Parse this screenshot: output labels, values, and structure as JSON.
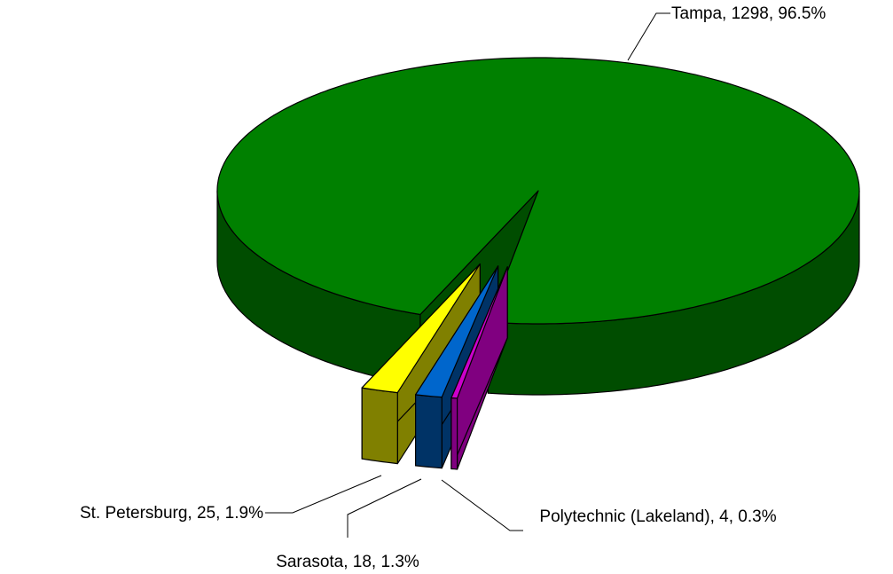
{
  "chart_data": {
    "type": "pie3d",
    "categories": [
      "Tampa",
      "St. Petersburg",
      "Sarasota",
      "Polytechnic (Lakeland)"
    ],
    "values": [
      1298,
      25,
      18,
      4
    ],
    "value_labels": [
      "Tampa, 1298, 96.5%",
      "St. Petersburg, 25, 1.9%",
      "Sarasota, 18, 1.3%",
      "Polytechnic (Lakeland), 4, 0.3%"
    ],
    "colors": [
      "#008000",
      "#ffff00",
      "#0066cc",
      "#cc00cc"
    ],
    "side_colors": [
      "#004d00",
      "#808000",
      "#003366",
      "#800080"
    ]
  }
}
